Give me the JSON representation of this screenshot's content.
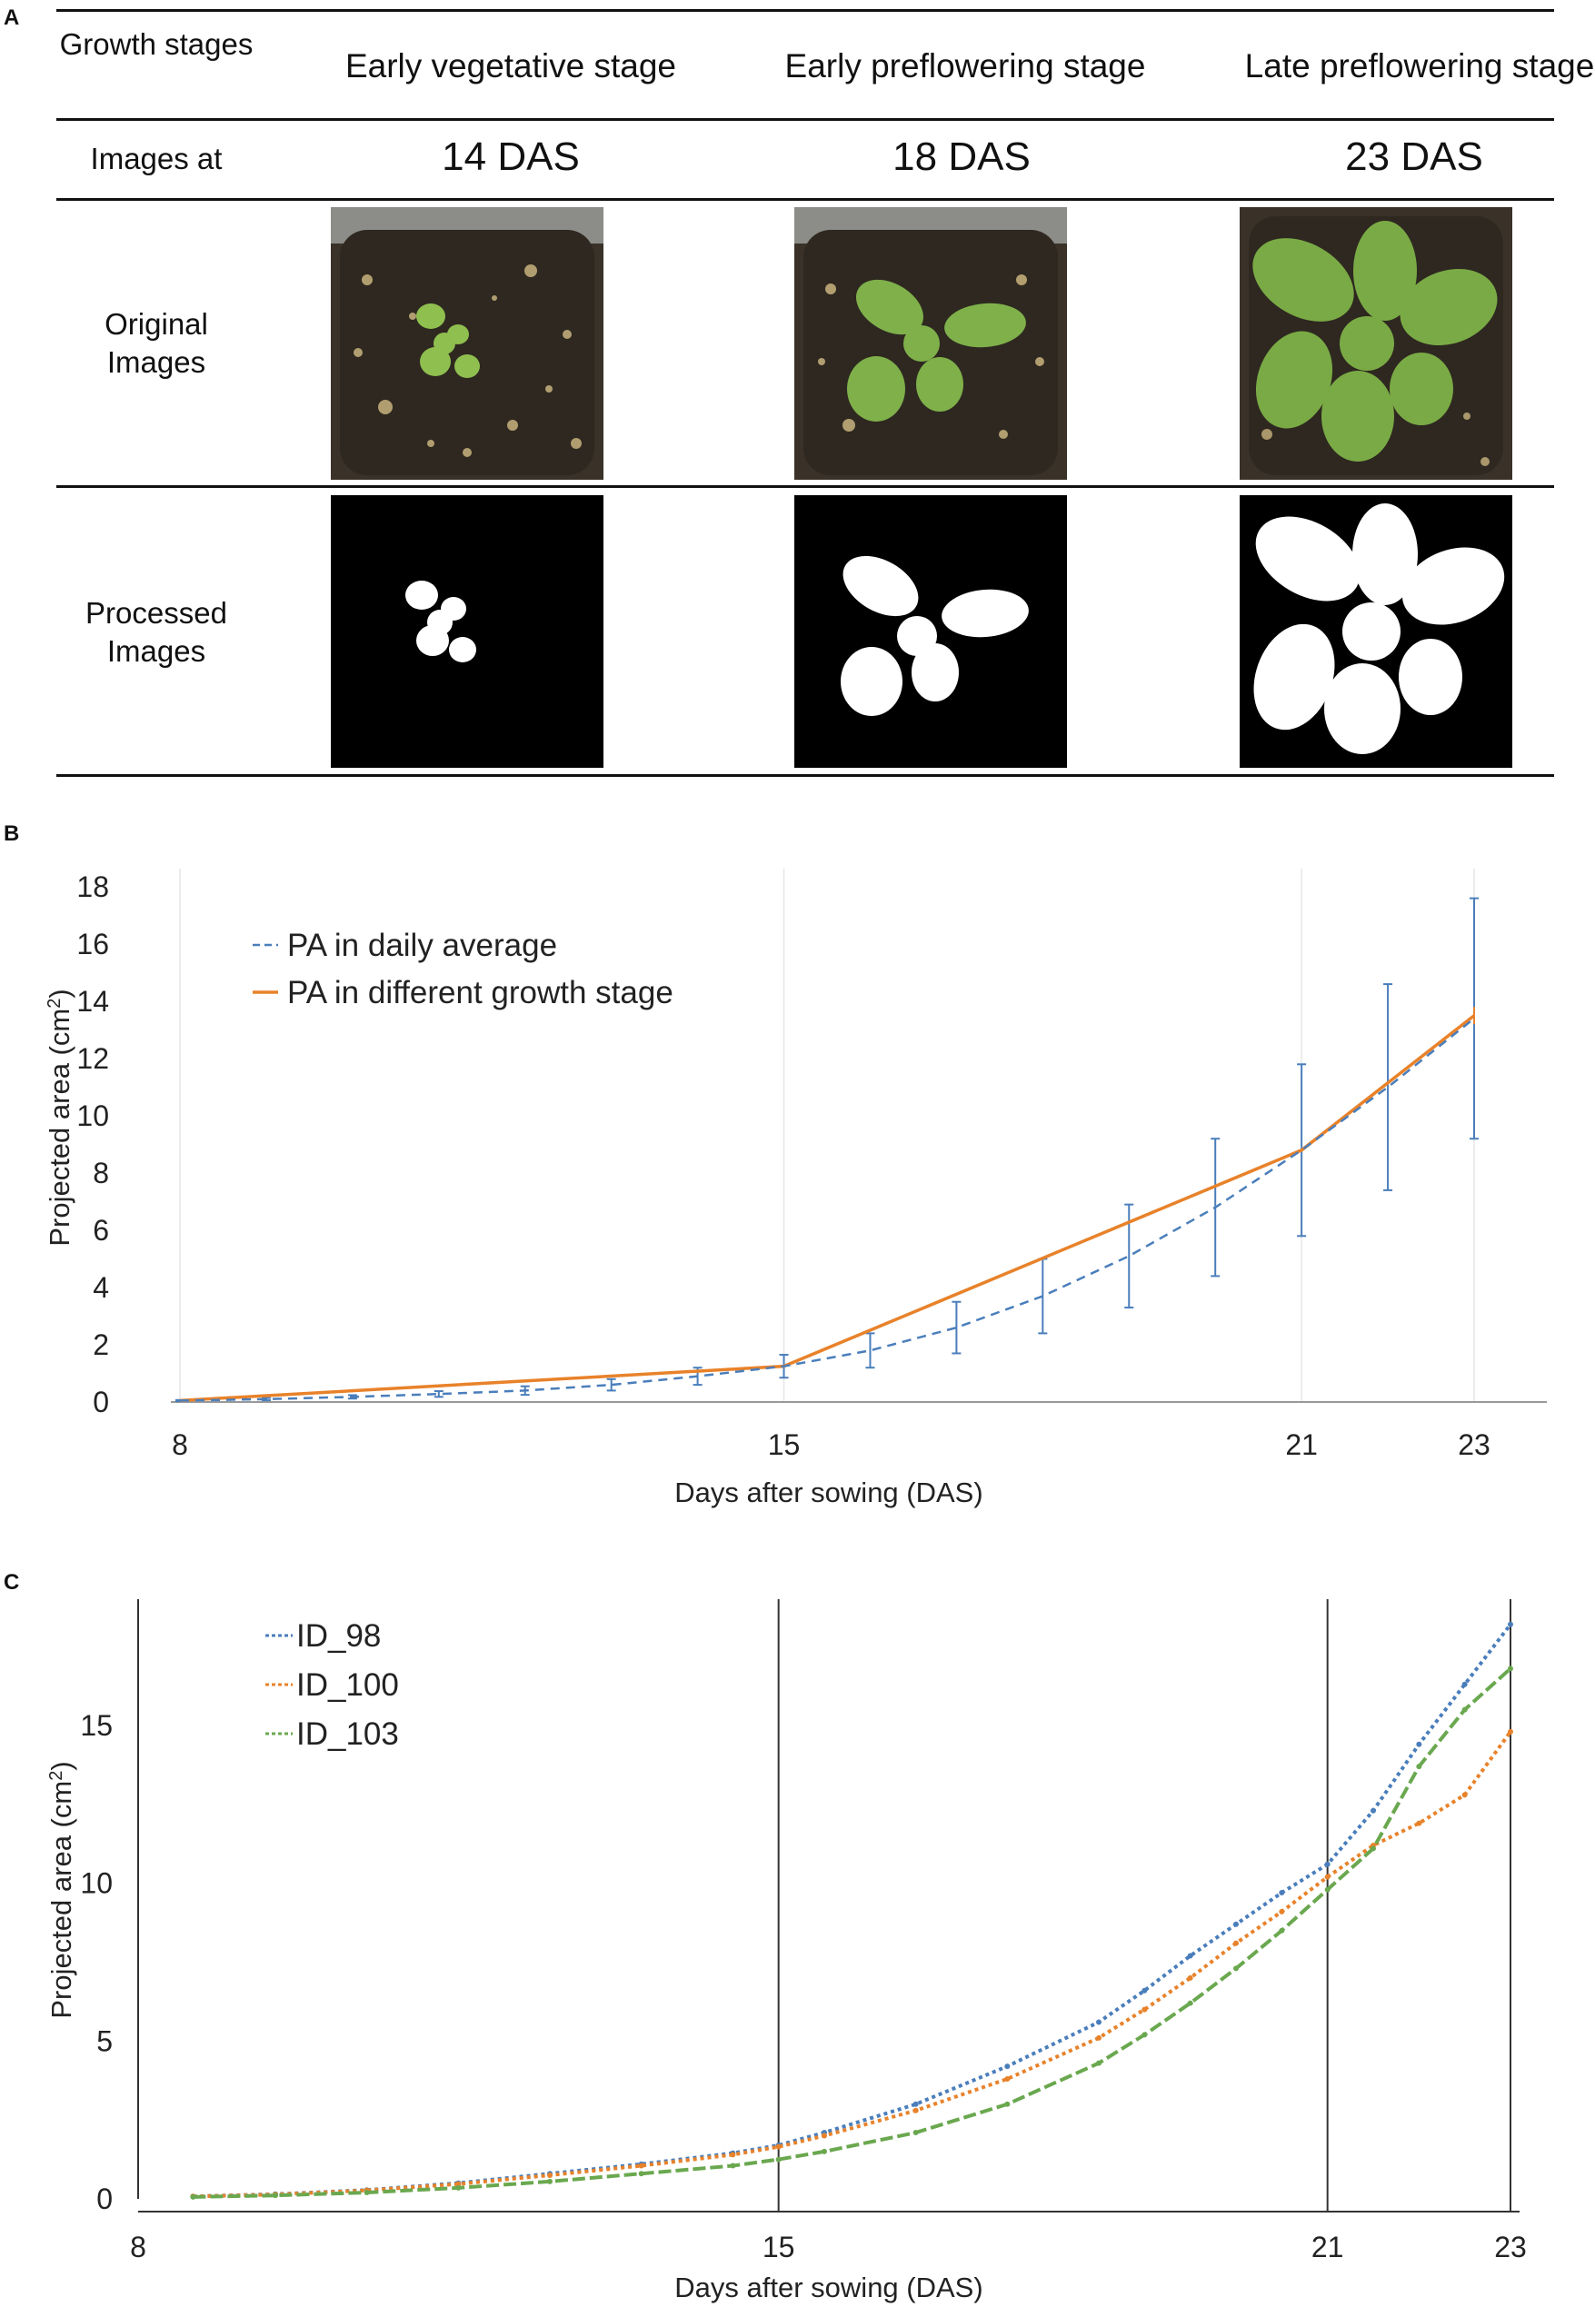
{
  "panel_a": {
    "label": "A",
    "row_labels": {
      "growth_stages": "Growth stages",
      "images_at": "Images at",
      "original": "Original Images",
      "processed": "Processed Images"
    },
    "columns": [
      {
        "stage": "Early vegetative stage",
        "das": "14 DAS"
      },
      {
        "stage": "Early preflowering stage",
        "das": "18 DAS"
      },
      {
        "stage": "Late preflowering stage",
        "das": "23 DAS"
      }
    ]
  },
  "panel_b": {
    "label": "B"
  },
  "panel_c": {
    "label": "C"
  },
  "chart_data": [
    {
      "type": "line",
      "xlabel": "Days after sowing (DAS)",
      "ylabel": "Projected area (cm2)",
      "xlim": [
        8,
        23
      ],
      "ylim": [
        0,
        18
      ],
      "x_ticks": [
        8,
        15,
        21,
        23
      ],
      "y_ticks": [
        0,
        2,
        4,
        6,
        8,
        10,
        12,
        14,
        16,
        18
      ],
      "grid": "vertical",
      "legend_position": "top-left",
      "series": [
        {
          "name": "PA in daily average",
          "color": "#4a7ebb",
          "style": "dashed",
          "x": [
            8,
            9,
            10,
            11,
            12,
            13,
            14,
            15,
            16,
            17,
            18,
            19,
            20,
            21,
            22,
            23
          ],
          "values": [
            0.05,
            0.1,
            0.18,
            0.28,
            0.4,
            0.6,
            0.9,
            1.25,
            1.8,
            2.6,
            3.7,
            5.1,
            6.8,
            8.8,
            11.0,
            13.4
          ],
          "error": [
            0.02,
            0.04,
            0.06,
            0.1,
            0.15,
            0.2,
            0.3,
            0.4,
            0.6,
            0.9,
            1.3,
            1.8,
            2.4,
            3.0,
            3.6,
            4.2
          ]
        },
        {
          "name": "PA in different growth stage",
          "color": "#e8822a",
          "style": "solid",
          "x": [
            8,
            15,
            21,
            23
          ],
          "values": [
            0.05,
            1.25,
            8.8,
            13.5
          ],
          "error": [
            0,
            0,
            0,
            0.3
          ]
        }
      ]
    },
    {
      "type": "line",
      "xlabel": "Days after sowing (DAS)",
      "ylabel": "Projected area (cm2)",
      "xlim": [
        8,
        23
      ],
      "ylim": [
        0,
        19
      ],
      "x_ticks": [
        8,
        15,
        21,
        23
      ],
      "y_ticks": [
        0,
        5,
        10,
        15
      ],
      "vertical_lines_at": [
        15,
        21,
        23
      ],
      "legend_position": "top-left",
      "series": [
        {
          "name": "ID_98",
          "color": "#4a7ebb",
          "x": [
            8.6,
            9.5,
            10.5,
            11.5,
            12.5,
            13.5,
            14.5,
            15.0,
            15.5,
            16.5,
            17.5,
            18.5,
            19.0,
            19.5,
            20.0,
            20.5,
            21.0,
            21.5,
            22.0,
            22.5,
            23.0
          ],
          "values": [
            0.08,
            0.15,
            0.28,
            0.5,
            0.8,
            1.1,
            1.45,
            1.7,
            2.1,
            3.0,
            4.2,
            5.6,
            6.6,
            7.7,
            8.7,
            9.7,
            10.6,
            12.3,
            14.4,
            16.3,
            18.2
          ]
        },
        {
          "name": "ID_100",
          "color": "#e8822a",
          "x": [
            8.6,
            9.5,
            10.5,
            11.5,
            12.5,
            13.5,
            14.5,
            15.0,
            15.5,
            16.5,
            17.5,
            18.5,
            19.0,
            19.5,
            20.0,
            20.5,
            21.0,
            21.5,
            22.0,
            22.5,
            23.0
          ],
          "values": [
            0.08,
            0.14,
            0.27,
            0.47,
            0.75,
            1.05,
            1.4,
            1.65,
            2.0,
            2.8,
            3.8,
            5.1,
            6.0,
            7.0,
            8.1,
            9.1,
            10.2,
            11.2,
            11.9,
            12.8,
            14.8
          ]
        },
        {
          "name": "ID_103",
          "color": "#6aa84f",
          "x": [
            8.6,
            9.5,
            10.5,
            11.5,
            12.5,
            13.5,
            14.5,
            15.0,
            15.5,
            16.5,
            17.5,
            18.5,
            19.0,
            19.5,
            20.0,
            20.5,
            21.0,
            21.5,
            22.0,
            22.5,
            23.0
          ],
          "values": [
            0.06,
            0.11,
            0.2,
            0.35,
            0.55,
            0.8,
            1.05,
            1.25,
            1.5,
            2.1,
            3.0,
            4.3,
            5.2,
            6.2,
            7.3,
            8.5,
            9.8,
            11.1,
            13.7,
            15.5,
            16.8
          ]
        }
      ]
    }
  ]
}
